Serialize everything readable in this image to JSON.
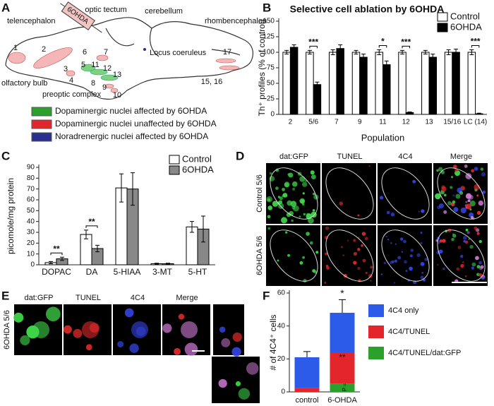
{
  "panel_labels": [
    "A",
    "B",
    "C",
    "D",
    "E",
    "F"
  ],
  "panel_a": {
    "labels": [
      "telencephalon",
      "optic tectum",
      "cerebellum",
      "rhombencephalon",
      "1",
      "2",
      "3",
      "4",
      "5",
      "6",
      "7",
      "8",
      "9",
      "10",
      "11",
      "12",
      "13",
      "15, 16",
      "17",
      "olfactory bulb",
      "preoptic complex",
      "Locus coeruleus",
      "6OHDA"
    ],
    "legend": [
      {
        "label": "Dopaminergic nuclei affected by 6OHDA",
        "color": "#2ca02c"
      },
      {
        "label": "Dopaminergic nuclei unaffected by 6OHDA",
        "color": "#e3262b"
      },
      {
        "label": "Noradrenergic nuclei affected by 6OHDA",
        "color": "#2b2f8f"
      }
    ]
  },
  "panel_d": {
    "columns": [
      "dat:GFP",
      "TUNEL",
      "4C4",
      "Merge"
    ],
    "rows": [
      "Control 5/6",
      "6OHDA 5/6"
    ]
  },
  "panel_e": {
    "columns": [
      "dat:GFP",
      "TUNEL",
      "4C4",
      "Merge"
    ],
    "rows": [
      "6OHDA 5/6"
    ]
  },
  "chart_data": [
    {
      "type": "bar",
      "title": "Selective cell ablation by 6OHDA",
      "xlabel": "Population",
      "ylabel": "Th⁺ profiles (% of control)",
      "categories": [
        "2",
        "5/6",
        "7",
        "9",
        "11",
        "12",
        "13",
        "15/16",
        "LC (14)"
      ],
      "series": [
        {
          "name": "Control",
          "color": "#ffffff",
          "values": [
            100,
            100,
            100,
            100,
            100,
            100,
            100,
            100,
            100
          ],
          "errors": [
            3,
            3,
            4,
            3,
            4,
            3,
            3,
            4,
            4
          ]
        },
        {
          "name": "6OHDA",
          "color": "#000000",
          "values": [
            108,
            48,
            106,
            92,
            80,
            3,
            92,
            100,
            1
          ],
          "errors": [
            4,
            4,
            6,
            5,
            6,
            1,
            5,
            5,
            1
          ]
        }
      ],
      "significance": [
        null,
        "***",
        null,
        null,
        "*",
        "***",
        null,
        null,
        "***"
      ],
      "ylim": [
        0,
        150
      ],
      "yticks": [
        0,
        25,
        50,
        75,
        100,
        125,
        150
      ],
      "legend": "upper right"
    },
    {
      "type": "bar",
      "ylabel": "picomole/mg protein",
      "categories": [
        "DOPAC",
        "DA",
        "5-HIAA",
        "3-MT",
        "5-HT"
      ],
      "series": [
        {
          "name": "Control",
          "color": "#ffffff",
          "values": [
            2,
            28,
            71,
            1,
            35
          ],
          "errors": [
            1,
            4,
            13,
            0.5,
            5
          ]
        },
        {
          "name": "6OHDA",
          "color": "#888888",
          "values": [
            5.5,
            15,
            70,
            1,
            33
          ],
          "errors": [
            1.5,
            3,
            15,
            0.5,
            12
          ]
        }
      ],
      "significance": [
        "**",
        "**",
        null,
        null,
        null
      ],
      "ylim": [
        0,
        90
      ],
      "yticks": [
        0,
        10,
        20,
        30,
        40,
        50,
        60,
        70,
        80,
        90
      ],
      "legend": "upper right"
    },
    {
      "type": "stacked_bar",
      "ylabel": "# of 4C4⁺ cells",
      "categories": [
        "control",
        "6-OHDA"
      ],
      "series": [
        {
          "name": "4C4/TUNEL/dat:GFP",
          "color": "#2ca02c",
          "values": [
            0,
            5
          ],
          "significance": [
            null,
            "P = 0.07"
          ]
        },
        {
          "name": "4C4/TUNEL",
          "color": "#e3262b",
          "values": [
            2.5,
            19
          ],
          "significance": [
            null,
            "**"
          ]
        },
        {
          "name": "4C4 only",
          "color": "#2b5be8",
          "values": [
            18.5,
            24
          ]
        }
      ],
      "total_errors": [
        3.5,
        8
      ],
      "significance": [
        null,
        "*"
      ],
      "ylim": [
        0,
        60
      ],
      "yticks": [
        0,
        20,
        40,
        60
      ],
      "legend": "right"
    }
  ]
}
